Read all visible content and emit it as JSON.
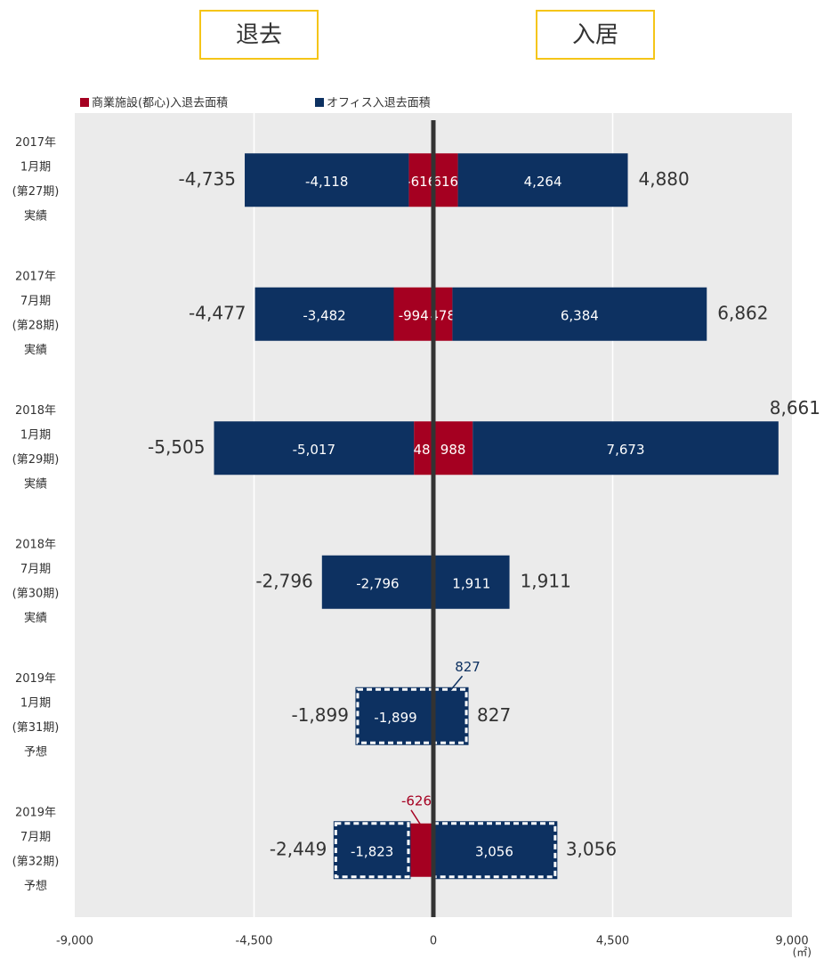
{
  "chart_data": {
    "type": "diverging_bar",
    "left_header": "退去",
    "right_header": "入居",
    "unit": "(㎡)",
    "categories": [
      [
        "2017年",
        "1月期",
        "(第27期)",
        "実績"
      ],
      [
        "2017年",
        "7月期",
        "(第28期)",
        "実績"
      ],
      [
        "2018年",
        "1月期",
        "(第29期)",
        "実績"
      ],
      [
        "2018年",
        "7月期",
        "(第30期)",
        "実績"
      ],
      [
        "2019年",
        "1月期",
        "(第31期)",
        "予想"
      ],
      [
        "2019年",
        "7月期",
        "(第32期)",
        "予想"
      ]
    ],
    "dashed": [
      false,
      false,
      false,
      false,
      true,
      true
    ],
    "series": [
      {
        "name": "商業施設(都心)入退去面積",
        "color": "#a50021",
        "out": [
          -616,
          -994,
          -488,
          null,
          null,
          -626
        ],
        "out_labels": [
          "-616",
          "-994",
          "-488",
          null,
          null,
          "-626"
        ],
        "in": [
          616,
          478,
          988,
          null,
          null,
          null
        ],
        "in_labels": [
          "616",
          "478",
          "988",
          null,
          null,
          null
        ]
      },
      {
        "name": "オフィス入退去面積",
        "color": "#0d3161",
        "out": [
          -4118,
          -3482,
          -5017,
          -2796,
          -1899,
          -1823
        ],
        "out_labels": [
          "-4,118",
          "-3,482",
          "-5,017",
          "-2,796",
          "-1,899",
          "-1,823"
        ],
        "in": [
          4264,
          6384,
          7673,
          1911,
          827,
          3056
        ],
        "in_labels": [
          "4,264",
          "6,384",
          "7,673",
          "1,911",
          "827",
          "3,056"
        ]
      }
    ],
    "total_out": [
      -4735,
      -4477,
      -5505,
      -2796,
      -1899,
      -2449
    ],
    "total_out_labels": [
      "-4,735",
      "-4,477",
      "-5,505",
      "-2,796",
      "-1,899",
      "-2,449"
    ],
    "total_in": [
      4880,
      6862,
      8661,
      1911,
      827,
      3056
    ],
    "total_in_labels": [
      "4,880",
      "6,862",
      "8,661",
      "1,911",
      "827",
      "3,056"
    ],
    "xlim": [
      -9000,
      9000
    ],
    "xticks": [
      {
        "value": -9000,
        "label": "-9,000"
      },
      {
        "value": -4500,
        "label": "-4,500"
      },
      0,
      {
        "value": 4500,
        "label": "4,500"
      },
      {
        "value": 9000,
        "label": "9,000"
      }
    ],
    "grid": true
  }
}
